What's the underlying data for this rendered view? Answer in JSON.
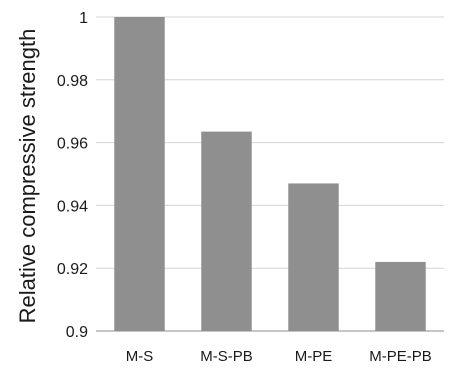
{
  "chart_data": {
    "type": "bar",
    "categories": [
      "M-S",
      "M-S-PB",
      "M-PE",
      "M-PE-PB"
    ],
    "values": [
      1.0,
      0.9635,
      0.947,
      0.922
    ],
    "ylabel": "Relative compressive strength",
    "ylim": [
      0.9,
      1.0
    ],
    "yticks": [
      "0.9",
      "0.92",
      "0.94",
      "0.96",
      "0.98",
      "1"
    ],
    "grid": true,
    "bar_color": "#8f8f8f"
  }
}
